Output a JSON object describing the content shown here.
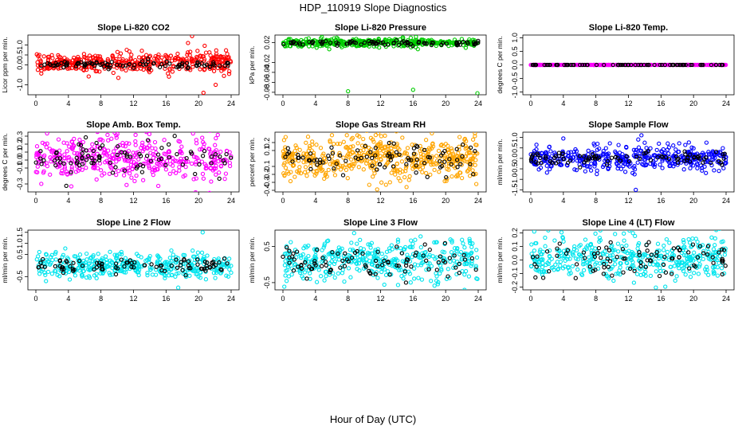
{
  "figure": {
    "title": "HDP_110919  Slope Diagnostics",
    "xlabel": "Hour of Day (UTC)"
  },
  "chart_data": [
    {
      "type": "scatter",
      "title": "Slope Li-820 CO2",
      "ylabel": "Licor ppm per min.",
      "xlim": [
        0,
        24
      ],
      "xticks": [
        0,
        4,
        8,
        12,
        16,
        20,
        24
      ],
      "ylim": [
        -1.5,
        1.5
      ],
      "yticks": [
        -1.0,
        0.0,
        0.5,
        1.0
      ],
      "yticklabels": [
        "-1.0",
        "0.0",
        "0.5",
        "1.0"
      ],
      "series": [
        {
          "color": "#ff0000",
          "center": 0.1,
          "spread": 0.5,
          "x_range": [
            0,
            24
          ],
          "count": 420,
          "outliers": [
            {
              "x": 19.2,
              "y": 1.45
            },
            {
              "x": 20.6,
              "y": -1.4
            },
            {
              "x": 18.7,
              "y": 1.1
            },
            {
              "x": 22.1,
              "y": -1.0
            }
          ]
        },
        {
          "color": "#000000",
          "center": 0.0,
          "spread": 0.2,
          "x_range": [
            0,
            24
          ],
          "count": 95
        }
      ]
    },
    {
      "type": "scatter",
      "title": "Slope Li-820 Pressure",
      "ylabel": "kPa per min.",
      "xlim": [
        0,
        24
      ],
      "xticks": [
        0,
        4,
        8,
        12,
        16,
        20,
        24
      ],
      "ylim": [
        -0.085,
        0.035
      ],
      "yticks": [
        -0.08,
        -0.06,
        -0.04,
        -0.02,
        0.02
      ],
      "yticklabels": [
        "-0.08",
        "-0.06",
        "-0.04",
        "-0.02",
        "0.02"
      ],
      "series": [
        {
          "color": "#00cc00",
          "center": 0.02,
          "spread": 0.008,
          "x_range": [
            0,
            24
          ],
          "count": 420,
          "outliers": [
            {
              "x": 8.0,
              "y": -0.078
            },
            {
              "x": 16.0,
              "y": -0.075
            },
            {
              "x": 23.9,
              "y": -0.082
            }
          ]
        },
        {
          "color": "#000000",
          "center": 0.019,
          "spread": 0.004,
          "x_range": [
            0,
            24
          ],
          "count": 90
        }
      ]
    },
    {
      "type": "scatter",
      "title": "Slope Li-820 Temp.",
      "ylabel": "degrees C per min.",
      "xlim": [
        0,
        24
      ],
      "xticks": [
        0,
        4,
        8,
        12,
        16,
        20,
        24
      ],
      "ylim": [
        -1.1,
        1.1
      ],
      "yticks": [
        -1.0,
        -0.5,
        0.0,
        0.5,
        1.0
      ],
      "yticklabels": [
        "-1.0",
        "-0.5",
        "0.0",
        "0.5",
        "1.0"
      ],
      "series": [
        {
          "color": "#ff00ff",
          "center": 0.0,
          "spread": 0.0,
          "x_range": [
            0,
            24
          ],
          "count": 330
        },
        {
          "color": "#000000",
          "center": 0.0,
          "spread": 0.0,
          "x_range": [
            0,
            24
          ],
          "count": 80
        }
      ]
    },
    {
      "type": "scatter",
      "title": "Slope Amb. Box Temp.",
      "ylabel": "degrees C per min.",
      "xlim": [
        0,
        24
      ],
      "xticks": [
        0,
        4,
        8,
        12,
        16,
        20,
        24
      ],
      "ylim": [
        -0.4,
        0.35
      ],
      "yticks": [
        -0.3,
        -0.1,
        0.0,
        0.1,
        0.2,
        0.3
      ],
      "yticklabels": [
        "-0.3",
        "-0.1",
        "0.0",
        "0.1",
        "0.2",
        "0.3"
      ],
      "series": [
        {
          "color": "#ff00ff",
          "center": 0.02,
          "spread": 0.28,
          "x_range": [
            0,
            24
          ],
          "count": 420
        },
        {
          "color": "#000000",
          "center": 0.02,
          "spread": 0.22,
          "x_range": [
            0,
            24
          ],
          "count": 90
        }
      ]
    },
    {
      "type": "scatter",
      "title": "Slope Gas Stream RH",
      "ylabel": "percent per min.",
      "xlim": [
        0,
        24
      ],
      "xticks": [
        0,
        4,
        8,
        12,
        16,
        20,
        24
      ],
      "ylim": [
        -0.42,
        0.33
      ],
      "yticks": [
        -0.4,
        -0.3,
        -0.2,
        -0.1,
        0.1,
        0.2
      ],
      "yticklabels": [
        "-0.4",
        "-0.3",
        "-0.2",
        "-0.1",
        "0.1",
        "0.2"
      ],
      "series": [
        {
          "color": "#ffa500",
          "center": 0.0,
          "spread": 0.28,
          "x_range": [
            0,
            24
          ],
          "count": 520
        },
        {
          "color": "#000000",
          "center": 0.0,
          "spread": 0.2,
          "x_range": [
            0,
            24
          ],
          "count": 90
        }
      ]
    },
    {
      "type": "scatter",
      "title": "Slope Sample Flow",
      "ylabel": "ml/min per min.",
      "xlim": [
        0,
        24
      ],
      "xticks": [
        0,
        4,
        8,
        12,
        16,
        20,
        24
      ],
      "ylim": [
        -1.6,
        1.25
      ],
      "yticks": [
        -1.5,
        -1.0,
        -0.5,
        0.0,
        0.5,
        1.0
      ],
      "yticklabels": [
        "-1.5",
        "-1.0",
        "-0.5",
        "0.0",
        "0.5",
        "1.0"
      ],
      "series": [
        {
          "color": "#0000ff",
          "center": 0.0,
          "spread": 0.55,
          "x_range": [
            0,
            24
          ],
          "count": 420,
          "outliers": [
            {
              "x": 13.6,
              "y": 1.1
            },
            {
              "x": 13.2,
              "y": 0.9
            },
            {
              "x": 12.9,
              "y": -1.5
            },
            {
              "x": 4.0,
              "y": 0.95
            },
            {
              "x": 14.0,
              "y": 0.75
            }
          ]
        },
        {
          "color": "#000000",
          "center": 0.0,
          "spread": 0.35,
          "x_range": [
            0,
            24
          ],
          "count": 90
        }
      ]
    },
    {
      "type": "scatter",
      "title": "Slope Line 2 Flow",
      "ylabel": "ml/min per min.",
      "xlim": [
        0,
        24
      ],
      "xticks": [
        0,
        4,
        8,
        12,
        16,
        20,
        24
      ],
      "ylim": [
        -1.1,
        1.6
      ],
      "yticks": [
        -0.5,
        0.5,
        1.0,
        1.5
      ],
      "yticklabels": [
        "-0.5",
        "0.5",
        "1.0",
        "1.5"
      ],
      "series": [
        {
          "color": "#00e5ee",
          "center": 0.0,
          "spread": 0.55,
          "x_range": [
            0,
            24
          ],
          "count": 420,
          "outliers": [
            {
              "x": 20.5,
              "y": 1.5
            },
            {
              "x": 17.5,
              "y": -1.0
            }
          ]
        },
        {
          "color": "#000000",
          "center": 0.0,
          "spread": 0.3,
          "x_range": [
            0,
            24
          ],
          "count": 90
        }
      ]
    },
    {
      "type": "scatter",
      "title": "Slope Line 3 Flow",
      "ylabel": "ml/min per min.",
      "xlim": [
        0,
        24
      ],
      "xticks": [
        0,
        4,
        8,
        12,
        16,
        20,
        24
      ],
      "ylim": [
        -0.7,
        0.95
      ],
      "yticks": [
        -0.5,
        0.5
      ],
      "yticklabels": [
        "-0.5",
        "0.5"
      ],
      "series": [
        {
          "color": "#00e5ee",
          "center": 0.1,
          "spread": 0.55,
          "x_range": [
            0,
            24
          ],
          "count": 420
        },
        {
          "color": "#000000",
          "center": 0.05,
          "spread": 0.45,
          "x_range": [
            0,
            24
          ],
          "count": 90
        }
      ]
    },
    {
      "type": "scatter",
      "title": "Slope Line 4 (LT) Flow",
      "ylabel": "ml/min per min.",
      "xlim": [
        0,
        24
      ],
      "xticks": [
        0,
        4,
        8,
        12,
        16,
        20,
        24
      ],
      "ylim": [
        -0.22,
        0.22
      ],
      "yticks": [
        -0.2,
        -0.1,
        0.0,
        0.1,
        0.2
      ],
      "yticklabels": [
        "-0.2",
        "-0.1",
        "0.0",
        "0.1",
        "0.2"
      ],
      "series": [
        {
          "color": "#00e5ee",
          "center": 0.02,
          "spread": 0.16,
          "x_range": [
            0,
            24
          ],
          "count": 420
        },
        {
          "color": "#000000",
          "center": 0.0,
          "spread": 0.14,
          "x_range": [
            0,
            24
          ],
          "count": 90
        }
      ]
    }
  ]
}
